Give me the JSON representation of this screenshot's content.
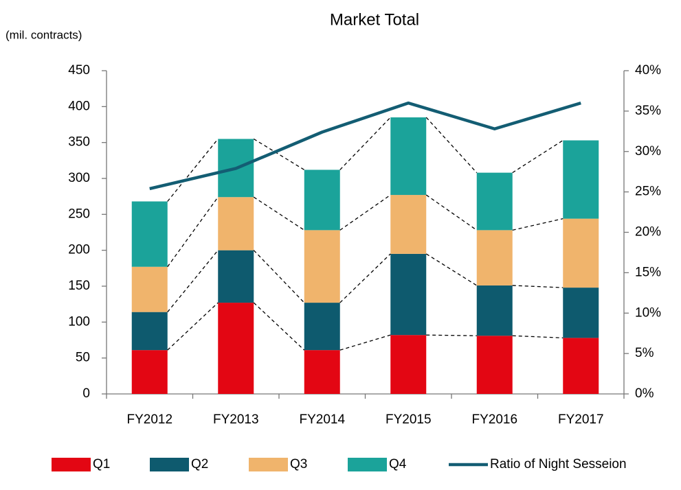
{
  "chart_data": {
    "type": "bar",
    "stacked": true,
    "title": "Market Total",
    "y_label": "(mil. contracts)",
    "categories": [
      "FY2012",
      "FY2013",
      "FY2014",
      "FY2015",
      "FY2016",
      "FY2017"
    ],
    "series": [
      {
        "name": "Q1",
        "color": "#e30613",
        "values": [
          61,
          127,
          61,
          82,
          81,
          78
        ]
      },
      {
        "name": "Q2",
        "color": "#0e5a6e",
        "values": [
          53,
          73,
          66,
          113,
          70,
          70
        ]
      },
      {
        "name": "Q3",
        "color": "#f0b46c",
        "values": [
          63,
          74,
          101,
          82,
          77,
          96
        ]
      },
      {
        "name": "Q4",
        "color": "#1ba39a",
        "values": [
          91,
          81,
          84,
          108,
          80,
          109
        ]
      },
      {
        "name": "Ratio of Night Sesseion",
        "color": "#135d73",
        "type": "line",
        "axis": "y2",
        "values": [
          25.4,
          27.9,
          32.4,
          36.0,
          32.8,
          36.0
        ]
      }
    ],
    "ylim": [
      0,
      450
    ],
    "yticks": [
      0,
      50,
      100,
      150,
      200,
      250,
      300,
      350,
      400,
      450
    ],
    "y2lim": [
      0,
      40
    ],
    "y2ticks": [
      {
        "value": 0,
        "label": "0%"
      },
      {
        "value": 5,
        "label": "5%"
      },
      {
        "value": 10,
        "label": "10%"
      },
      {
        "value": 15,
        "label": "15%"
      },
      {
        "value": 20,
        "label": "20%"
      },
      {
        "value": 25,
        "label": "25%"
      },
      {
        "value": 30,
        "label": "30%"
      },
      {
        "value": 35,
        "label": "35%"
      },
      {
        "value": 40,
        "label": "40%"
      }
    ],
    "legend": "bottom",
    "grid": false
  }
}
